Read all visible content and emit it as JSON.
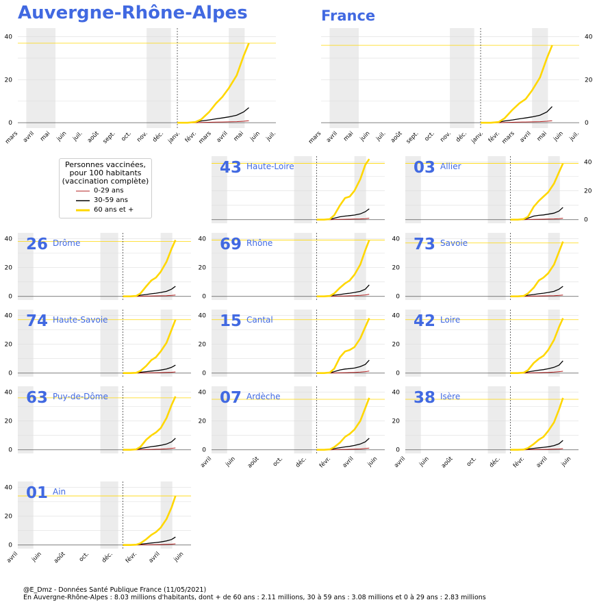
{
  "titles": {
    "region": "Auvergne-Rhône-Alpes",
    "france": "France"
  },
  "colors": {
    "young": "#b22222",
    "middle": "#000000",
    "old": "#ffd700",
    "accent": "#4169e1",
    "shade": "#ececec"
  },
  "legend": {
    "title_lines": [
      "Personnes vaccinées,",
      "pour 100 habitants",
      "(vaccination complète)"
    ],
    "items": [
      "0-29 ans",
      "30-59 ans",
      "60 ans et +"
    ]
  },
  "footer": {
    "line1": "@E_Dmz - Données Santé Publique France (11/05/2021)",
    "line2": "En Auvergne-Rhône-Alpes : 8.03 millions d'habitants, dont + de 60 ans : 2.11 millions, 30 à 59 ans : 3.08 millions et 0 à 29 ans : 2.83 millions"
  },
  "chart_data": {
    "type": "line",
    "yticks": [
      0,
      20,
      40
    ],
    "ylim": [
      -2.5,
      44
    ],
    "xticks_top": [
      "mars",
      "avril",
      "mai",
      "juin",
      "juil.",
      "août",
      "sept.",
      "oct.",
      "nov.",
      "déc.",
      "janv.",
      "févr.",
      "mars",
      "avril",
      "mai",
      "juin",
      "juil."
    ],
    "xticks_small": [
      "avril",
      "juin",
      "août",
      "oct.",
      "déc.",
      "févr.",
      "avril",
      "juin"
    ],
    "lockdowns": [
      [
        "2020-03-17",
        "2020-05-11"
      ],
      [
        "2020-10-30",
        "2020-12-15"
      ],
      [
        "2021-04-03",
        "2021-05-03"
      ]
    ],
    "vaccination_start": "2020-12-27",
    "xlim_top": [
      "2020-03-01",
      "2021-07-01"
    ],
    "xlim_small": [
      "2020-04-01",
      "2021-06-20"
    ],
    "panels": [
      {
        "id": "ara",
        "name": "Auvergne-Rhône-Alpes",
        "code": "",
        "old": [
          0,
          0,
          0.3,
          1.5,
          5,
          9,
          12,
          16,
          22,
          31,
          37
        ],
        "middle": [
          0,
          0,
          0.2,
          0.8,
          1.3,
          1.8,
          2.2,
          2.7,
          3.5,
          5,
          7
        ],
        "young": [
          0,
          0,
          0,
          0.1,
          0.2,
          0.3,
          0.35,
          0.4,
          0.5,
          0.7,
          0.9
        ],
        "ref": 37
      },
      {
        "id": "fr",
        "name": "France",
        "code": "",
        "old": [
          0,
          0,
          0.3,
          2,
          6,
          9,
          11,
          15,
          21,
          30,
          36
        ],
        "middle": [
          0,
          0,
          0.2,
          0.8,
          1.3,
          1.8,
          2.2,
          2.7,
          3.5,
          5,
          7.5
        ],
        "young": [
          0,
          0,
          0,
          0.1,
          0.2,
          0.3,
          0.35,
          0.4,
          0.5,
          0.7,
          0.9
        ],
        "ref": 36
      },
      {
        "id": "d43",
        "name": "Haute-Loire",
        "code": "43",
        "old": [
          0,
          0,
          0.4,
          3,
          10,
          15,
          16,
          20,
          28,
          38,
          42
        ],
        "middle": [
          0,
          0,
          0.2,
          1,
          2,
          2.5,
          2.8,
          3.2,
          4,
          5.5,
          7.5
        ],
        "young": [
          0,
          0,
          0,
          0.1,
          0.2,
          0.3,
          0.35,
          0.45,
          0.55,
          0.75,
          1
        ],
        "ref": 39
      },
      {
        "id": "d03",
        "name": "Allier",
        "code": "03",
        "old": [
          0,
          0,
          0.4,
          2,
          9,
          13,
          16,
          19,
          25,
          33,
          39
        ],
        "middle": [
          0,
          0,
          0.2,
          1,
          2.5,
          3,
          3.3,
          3.8,
          4.5,
          6,
          8.5
        ],
        "young": [
          0,
          0,
          0,
          0.1,
          0.2,
          0.3,
          0.35,
          0.45,
          0.55,
          0.75,
          1
        ],
        "ref": 39
      },
      {
        "id": "d26",
        "name": "Drôme",
        "code": "26",
        "old": [
          0,
          0,
          0.3,
          2,
          7,
          11,
          13,
          17,
          24,
          33,
          39
        ],
        "middle": [
          0,
          0,
          0.2,
          0.8,
          1.3,
          1.8,
          2.2,
          2.7,
          3.5,
          5,
          7
        ],
        "young": [
          0,
          0,
          0,
          0.1,
          0.2,
          0.3,
          0.35,
          0.4,
          0.5,
          0.7,
          0.9
        ],
        "ref": 38
      },
      {
        "id": "d69",
        "name": "Rhône",
        "code": "69",
        "old": [
          0,
          0,
          0.3,
          2,
          6,
          9,
          11,
          15,
          22,
          32,
          39
        ],
        "middle": [
          0,
          0,
          0.2,
          0.8,
          1.3,
          1.8,
          2.2,
          2.7,
          3.5,
          5,
          8
        ],
        "young": [
          0,
          0,
          0,
          0.1,
          0.2,
          0.3,
          0.4,
          0.5,
          0.7,
          1,
          1.5
        ],
        "ref": 39
      },
      {
        "id": "d73",
        "name": "Savoie",
        "code": "73",
        "old": [
          0,
          0,
          0.3,
          2,
          6,
          11,
          13,
          16,
          22,
          31,
          38
        ],
        "middle": [
          0,
          0,
          0.2,
          0.8,
          1.3,
          1.8,
          2.2,
          2.7,
          3.5,
          5,
          7
        ],
        "young": [
          0,
          0,
          0,
          0.1,
          0.2,
          0.3,
          0.35,
          0.4,
          0.5,
          0.7,
          0.9
        ],
        "ref": 37
      },
      {
        "id": "d74",
        "name": "Haute-Savoie",
        "code": "74",
        "old": [
          0,
          0,
          0.2,
          1.5,
          5,
          9,
          11,
          15,
          21,
          30,
          37
        ],
        "middle": [
          0,
          0,
          0.1,
          0.6,
          1,
          1.4,
          1.7,
          2.1,
          2.8,
          4,
          5.5
        ],
        "young": [
          0,
          0,
          0,
          0.1,
          0.15,
          0.25,
          0.3,
          0.35,
          0.45,
          0.6,
          0.8
        ],
        "ref": 37
      },
      {
        "id": "d15",
        "name": "Cantal",
        "code": "15",
        "old": [
          0,
          0,
          0.4,
          3,
          11,
          15,
          16,
          18,
          24,
          32,
          38
        ],
        "middle": [
          0,
          0,
          0.2,
          1,
          2.2,
          2.8,
          3.1,
          3.5,
          4.5,
          6,
          9
        ],
        "young": [
          0,
          0,
          0,
          0.1,
          0.2,
          0.3,
          0.4,
          0.5,
          0.7,
          1,
          1.4
        ],
        "ref": 37
      },
      {
        "id": "d42",
        "name": "Loire",
        "code": "42",
        "old": [
          0,
          0,
          0.3,
          2,
          7,
          10,
          12,
          16,
          23,
          32,
          38
        ],
        "middle": [
          0,
          0,
          0.2,
          0.8,
          1.5,
          2,
          2.4,
          3,
          4,
          5.5,
          8.5
        ],
        "young": [
          0,
          0,
          0,
          0.1,
          0.2,
          0.3,
          0.4,
          0.5,
          0.7,
          1,
          1.3
        ],
        "ref": 37
      },
      {
        "id": "d63",
        "name": "Puy-de-Dôme",
        "code": "63",
        "old": [
          0,
          0,
          0.3,
          2,
          7,
          10,
          12,
          15,
          22,
          31,
          37
        ],
        "middle": [
          0,
          0,
          0.2,
          0.9,
          1.6,
          2.2,
          2.6,
          3.1,
          4,
          5.5,
          8
        ],
        "young": [
          0,
          0,
          0,
          0.1,
          0.2,
          0.3,
          0.4,
          0.5,
          0.7,
          1,
          1.3
        ],
        "ref": 36
      },
      {
        "id": "d07",
        "name": "Ardèche",
        "code": "07",
        "old": [
          0,
          0,
          0.3,
          1.8,
          5,
          9,
          11,
          14,
          20,
          29,
          36
        ],
        "middle": [
          0,
          0,
          0.2,
          0.8,
          1.5,
          2,
          2.4,
          3,
          4,
          5.5,
          8
        ],
        "young": [
          0,
          0,
          0,
          0.1,
          0.2,
          0.3,
          0.4,
          0.5,
          0.6,
          0.9,
          1.2
        ],
        "ref": 35
      },
      {
        "id": "d38",
        "name": "Isère",
        "code": "38",
        "old": [
          0,
          0,
          0.2,
          1.2,
          4,
          7,
          9,
          13,
          19,
          28,
          36
        ],
        "middle": [
          0,
          0,
          0.1,
          0.6,
          1,
          1.4,
          1.7,
          2.1,
          2.9,
          4.2,
          6.5
        ],
        "young": [
          0,
          0,
          0,
          0.1,
          0.15,
          0.25,
          0.3,
          0.35,
          0.45,
          0.6,
          0.8
        ],
        "ref": 35
      },
      {
        "id": "d01",
        "name": "Ain",
        "code": "01",
        "old": [
          0,
          0,
          0.2,
          1.2,
          4,
          7,
          9,
          12,
          18,
          26,
          34
        ],
        "middle": [
          0,
          0,
          0.1,
          0.6,
          1,
          1.4,
          1.7,
          2.1,
          2.8,
          3.8,
          5.5
        ],
        "young": [
          0,
          0,
          0,
          0.1,
          0.15,
          0.25,
          0.3,
          0.35,
          0.45,
          0.6,
          0.8
        ],
        "ref": 34
      }
    ],
    "series_dates": [
      "2020-12-27",
      "2021-01-15",
      "2021-01-30",
      "2021-02-10",
      "2021-02-25",
      "2021-03-10",
      "2021-03-22",
      "2021-04-03",
      "2021-04-18",
      "2021-05-01",
      "2021-05-11"
    ]
  }
}
